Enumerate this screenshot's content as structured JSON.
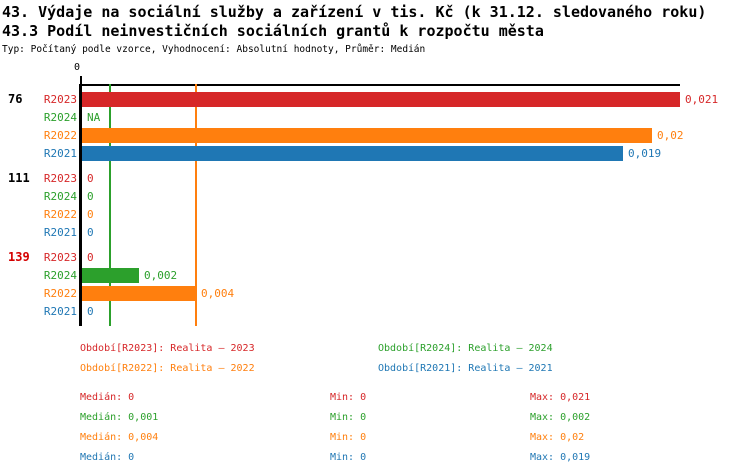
{
  "header": {
    "title_line1": "43. Výdaje na sociální služby a zařízení v tis. Kč (k 31.12. sledovaného roku)",
    "title_line2": "43.3 Podíl neinvestičních sociálních grantů k rozpočtu města",
    "subtitle": "Typ: Počítaný podle vzorce, Vyhodnocení: Absolutní hodnoty, Průměr: Medián"
  },
  "colors": {
    "r2023": "#d62728",
    "r2024": "#2ca02c",
    "r2022": "#ff7f0e",
    "r2021": "#1f77b4",
    "group_label_alert": "#d40000",
    "axis": "#000000",
    "background": "#ffffff"
  },
  "chart_data": {
    "type": "bar",
    "orientation": "horizontal",
    "x_tick_label": "0",
    "xlim": [
      0,
      0.021
    ],
    "grid": false,
    "series_keys": [
      "R2023",
      "R2024",
      "R2022",
      "R2021"
    ],
    "groups": [
      {
        "label": "76",
        "label_color": "#000000",
        "rows": [
          {
            "series": "R2023",
            "key": "r2023",
            "value": 0.021,
            "display": "0,021"
          },
          {
            "series": "R2024",
            "key": "r2024",
            "value": null,
            "display": "NA"
          },
          {
            "series": "R2022",
            "key": "r2022",
            "value": 0.02,
            "display": "0,02"
          },
          {
            "series": "R2021",
            "key": "r2021",
            "value": 0.019,
            "display": "0,019"
          }
        ]
      },
      {
        "label": "111",
        "label_color": "#000000",
        "rows": [
          {
            "series": "R2023",
            "key": "r2023",
            "value": 0,
            "display": "0"
          },
          {
            "series": "R2024",
            "key": "r2024",
            "value": 0,
            "display": "0"
          },
          {
            "series": "R2022",
            "key": "r2022",
            "value": 0,
            "display": "0"
          },
          {
            "series": "R2021",
            "key": "r2021",
            "value": 0,
            "display": "0"
          }
        ]
      },
      {
        "label": "139",
        "label_color": "#d40000",
        "rows": [
          {
            "series": "R2023",
            "key": "r2023",
            "value": 0,
            "display": "0"
          },
          {
            "series": "R2024",
            "key": "r2024",
            "value": 0.002,
            "display": "0,002"
          },
          {
            "series": "R2022",
            "key": "r2022",
            "value": 0.004,
            "display": "0,004"
          },
          {
            "series": "R2021",
            "key": "r2021",
            "value": 0,
            "display": "0"
          }
        ]
      }
    ],
    "reference_lines": [
      {
        "key": "r2024",
        "value": 0.001
      },
      {
        "key": "r2022",
        "value": 0.004
      }
    ]
  },
  "legend": [
    {
      "key": "r2023",
      "label": "Období[R2023]: Realita – 2023"
    },
    {
      "key": "r2024",
      "label": "Období[R2024]: Realita – 2024"
    },
    {
      "key": "r2022",
      "label": "Období[R2022]: Realita – 2022"
    },
    {
      "key": "r2021",
      "label": "Období[R2021]: Realita – 2021"
    }
  ],
  "stats": [
    {
      "key": "r2023",
      "median": "Medián: 0",
      "min": "Min: 0",
      "max": "Max: 0,021"
    },
    {
      "key": "r2024",
      "median": "Medián: 0,001",
      "min": "Min: 0",
      "max": "Max: 0,002"
    },
    {
      "key": "r2022",
      "median": "Medián: 0,004",
      "min": "Min: 0",
      "max": "Max: 0,02"
    },
    {
      "key": "r2021",
      "median": "Medián: 0",
      "min": "Min: 0",
      "max": "Max: 0,019"
    }
  ]
}
